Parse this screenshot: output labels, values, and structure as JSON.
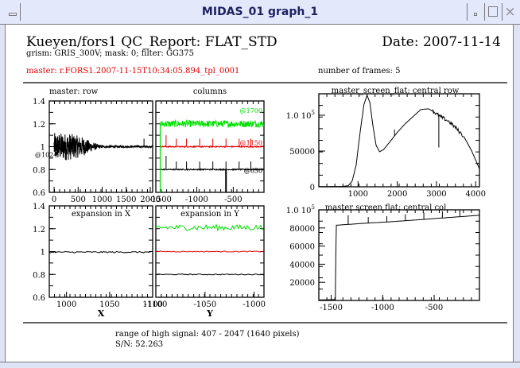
{
  "window": {
    "title": "MIDAS_01 graph_1",
    "buttons": {
      "menu": "window-menu",
      "minimize": "minimize",
      "maximize": "maximize",
      "close": "×"
    }
  },
  "report": {
    "title": "Kueyen/fors1 QC_Report: FLAT_STD",
    "date": "Date: 2007-11-14",
    "subtitle": "grism: GRIS_300V; mask: 0; filter: GG375",
    "master": "master: r.FORS1.2007-11-15T10:34:05.894_tpl_0001",
    "nframes": "number of frames: 5",
    "range": "range of high signal: 407 - 2047 (1640 pixels)",
    "sn": "S/N: 52.263"
  },
  "colors": {
    "black": "#000000",
    "red": "#e00000",
    "green": "#00e000"
  },
  "chart_data": [
    {
      "id": "master_row",
      "type": "line",
      "title": "master: row",
      "xlim": [
        -100,
        2050
      ],
      "ylim": [
        0.6,
        1.4
      ],
      "xticks": [
        0,
        500,
        1000,
        1500,
        2000
      ],
      "xtick_labels": [
        "0",
        "500",
        "1000",
        "1500",
        "2000"
      ],
      "yticks": [
        0.6,
        0.8,
        1,
        1.2,
        1.4
      ],
      "ytick_labels": [
        "0.6",
        "0.8",
        "1",
        "1.2",
        "1.4"
      ],
      "annotations": [
        {
          "text": "@1024",
          "color": "#000000"
        }
      ],
      "series": [
        {
          "name": "row",
          "color": "#000000",
          "description": "noisy ~1.0, amplitude ±0.1 from 0 to 800 decreasing, flat 1.0 after 1000, spike at ~1870",
          "noise_envelope": [
            [
              0,
              0.1
            ],
            [
              300,
              0.1
            ],
            [
              600,
              0.07
            ],
            [
              800,
              0.03
            ],
            [
              1000,
              0.008
            ],
            [
              2050,
              0.006
            ]
          ],
          "spikes": [
            [
              1870,
              1.07
            ]
          ]
        }
      ]
    },
    {
      "id": "columns",
      "type": "line",
      "title": "columns",
      "xlim": [
        -1560,
        -80
      ],
      "ylim": [
        0.6,
        1.4
      ],
      "xticks": [
        -1500,
        -1000,
        -500
      ],
      "xtick_labels": [
        "-1500",
        "-1000",
        "-500"
      ],
      "series": [
        {
          "name": "@1700",
          "label": "@1700",
          "color": "#00e000",
          "offset": 1.2,
          "start": -1500,
          "noise": 0.03
        },
        {
          "name": "@1150",
          "label": "@1150",
          "color": "#e00000",
          "offset": 1.0,
          "start": -1500,
          "noise": 0.005,
          "spikes": [
            [
              -1420,
              1.1
            ],
            [
              -1280,
              1.07
            ],
            [
              -1140,
              1.07
            ],
            [
              -960,
              1.07
            ],
            [
              -780,
              1.07
            ],
            [
              -600,
              1.07
            ],
            [
              -420,
              1.07
            ],
            [
              -260,
              1.07
            ]
          ]
        },
        {
          "name": "@650",
          "label": "@650",
          "color": "#000000",
          "offset": 0.8,
          "start": -1500,
          "noise": 0.005,
          "spikes": [
            [
              -1420,
              0.92
            ],
            [
              -1280,
              0.87
            ],
            [
              -1140,
              0.87
            ],
            [
              -960,
              0.87
            ],
            [
              -780,
              0.87
            ],
            [
              -600,
              0.87
            ],
            [
              -420,
              0.87
            ],
            [
              -260,
              0.87
            ]
          ],
          "dips": [
            [
              -600,
              0.6
            ]
          ]
        }
      ],
      "green_dropline_x": -1500
    },
    {
      "id": "expansion_x",
      "type": "line",
      "title": "expansion in X",
      "xlabel": "X",
      "xlim": [
        980,
        1100
      ],
      "ylim": [
        0.6,
        1.4
      ],
      "xticks": [
        1000,
        1050,
        1100
      ],
      "xtick_labels": [
        "1000",
        "1050",
        "1100"
      ],
      "yticks": [
        0.6,
        0.8,
        1,
        1.2,
        1.4
      ],
      "ytick_labels": [
        "0.6",
        "0.8",
        "1",
        "1.2",
        "1.4"
      ],
      "series": [
        {
          "name": "row",
          "color": "#000000",
          "level": 0.995,
          "noise": 0.006
        }
      ]
    },
    {
      "id": "expansion_y",
      "type": "line",
      "title": "expansion in Y",
      "xlabel": "Y",
      "xlim": [
        -1100,
        -990
      ],
      "ylim": [
        0.6,
        1.4
      ],
      "xticks": [
        -1100,
        -1050,
        -1000
      ],
      "xtick_labels": [
        "-1100",
        "-1050",
        "-1000"
      ],
      "series": [
        {
          "name": "@1700",
          "color": "#00e000",
          "level": 1.21,
          "noise": 0.025
        },
        {
          "name": "@1150",
          "color": "#e00000",
          "level": 1.0,
          "noise": 0.004
        },
        {
          "name": "@650",
          "color": "#000000",
          "level": 0.8,
          "noise": 0.004
        }
      ]
    },
    {
      "id": "central_row",
      "type": "line",
      "title": "master_screen_flat: central row",
      "xlim": [
        0,
        4096
      ],
      "ylim": [
        0,
        130000
      ],
      "xticks": [
        1000,
        2000,
        3000,
        4000
      ],
      "xtick_labels": [
        "1000",
        "2000",
        "3000",
        "4000"
      ],
      "yticks": [
        0,
        50000,
        100000
      ],
      "ytick_labels": [
        "0",
        "50000",
        "1.0 10^5"
      ],
      "series": [
        {
          "name": "central row",
          "color": "#000000",
          "points": [
            [
              0,
              300
            ],
            [
              600,
              500
            ],
            [
              750,
              1500
            ],
            [
              850,
              8000
            ],
            [
              950,
              30000
            ],
            [
              1050,
              75000
            ],
            [
              1150,
              115000
            ],
            [
              1230,
              128000
            ],
            [
              1300,
              118000
            ],
            [
              1380,
              85000
            ],
            [
              1460,
              58000
            ],
            [
              1550,
              49000
            ],
            [
              1650,
              52000
            ],
            [
              1800,
              62000
            ],
            [
              2000,
              76000
            ],
            [
              2200,
              88000
            ],
            [
              2400,
              98000
            ],
            [
              2600,
              108000
            ],
            [
              2800,
              109000
            ],
            [
              2950,
              104000
            ],
            [
              3100,
              98000
            ],
            [
              3300,
              92000
            ],
            [
              3500,
              82000
            ],
            [
              3700,
              70000
            ],
            [
              3900,
              50000
            ],
            [
              4096,
              25000
            ]
          ],
          "spikes": [
            [
              3060,
              55000
            ],
            [
              1930,
              80000
            ]
          ]
        }
      ]
    },
    {
      "id": "central_col",
      "type": "line",
      "title": "master screen flat: central col",
      "xlim": [
        -1620,
        -60
      ],
      "ylim": [
        0,
        100000
      ],
      "xticks": [
        -1500,
        -1000,
        -500
      ],
      "xtick_labels": [
        "-1500",
        "-1000",
        "-500"
      ],
      "yticks": [
        20000,
        40000,
        60000,
        80000,
        100000
      ],
      "ytick_labels": [
        "20000",
        "40000",
        "60000",
        "80000",
        "1.0 10^5"
      ],
      "series": [
        {
          "name": "central col",
          "color": "#000000",
          "points": [
            [
              -1620,
              500
            ],
            [
              -1460,
              1000
            ],
            [
              -1455,
              50000
            ],
            [
              -1450,
              83000
            ],
            [
              -1200,
              85000
            ],
            [
              -900,
              87000
            ],
            [
              -600,
              89500
            ],
            [
              -300,
              92000
            ],
            [
              -60,
              94000
            ]
          ],
          "spikes": [
            [
              -1335,
              94000
            ],
            [
              -1140,
              92000
            ],
            [
              -960,
              93000
            ],
            [
              -780,
              95000
            ],
            [
              -600,
              97000
            ],
            [
              -420,
              98500
            ],
            [
              -250,
              99500
            ]
          ]
        }
      ]
    }
  ]
}
